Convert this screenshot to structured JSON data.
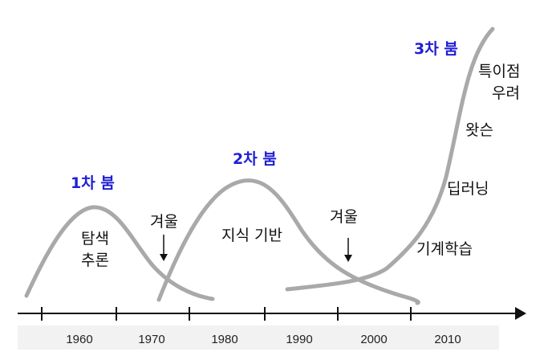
{
  "colors": {
    "boom": "#1f1fd6",
    "curve": "#a9a9a9",
    "axis": "#111111",
    "text": "#111111"
  },
  "timeline": {
    "decades": [
      "1960",
      "1970",
      "1980",
      "1990",
      "2000",
      "2010"
    ]
  },
  "booms": {
    "first": "1차 붐",
    "second": "2차 붐",
    "third": "3차 붐"
  },
  "winters": {
    "first": "겨울",
    "second": "겨울"
  },
  "topics": {
    "search_line1": "탐색",
    "search_line2": "추론",
    "knowledge": "지식 기반",
    "machine_learning": "기계학습",
    "deep_learning": "딥러닝",
    "watson": "왓슨",
    "singularity_line1": "특이점",
    "singularity_line2": "우려"
  }
}
